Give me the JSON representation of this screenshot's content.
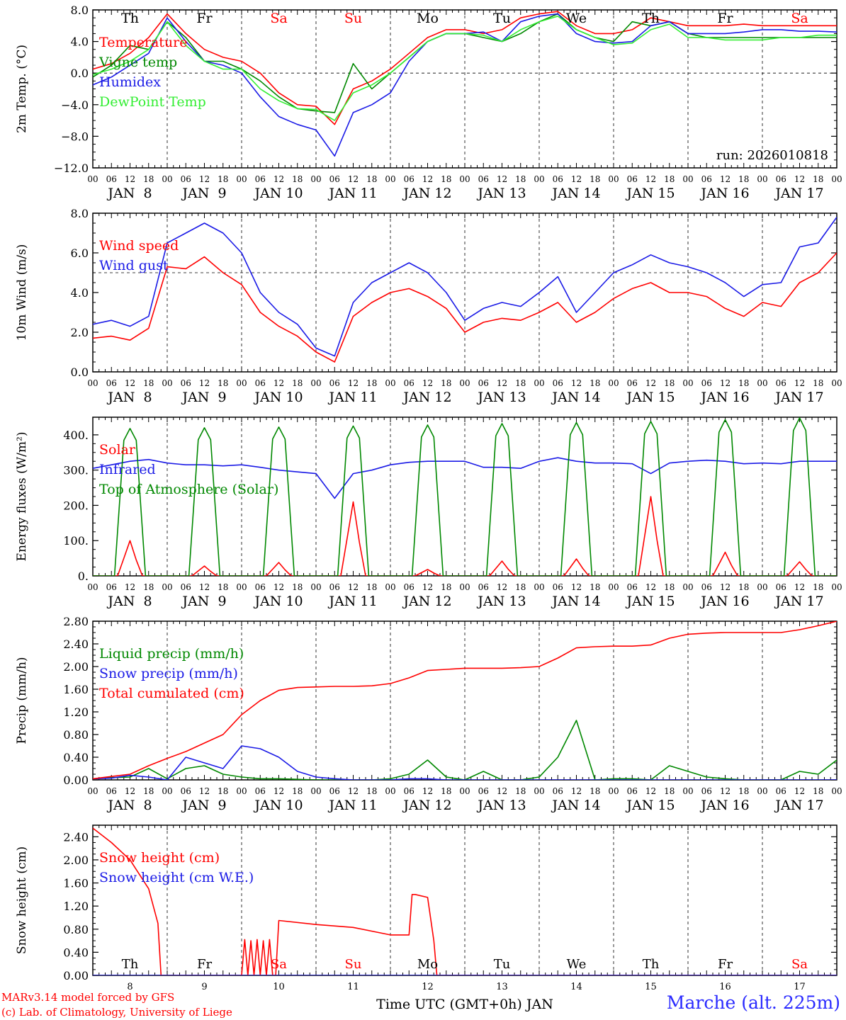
{
  "run_label": "run: 2026010818",
  "footer": {
    "model": "MARv3.14 model forced by GFS",
    "lab": "(c) Lab. of Climatology, University of Liege",
    "station": "Marche (alt. 225m)"
  },
  "colors": {
    "red": "#ff0000",
    "green": "#008800",
    "blue": "#1a1ae6",
    "lime": "#33ee33",
    "weekend": "#ff0000",
    "axis": "#000000"
  },
  "time_axis": {
    "hour_ticks": [
      "00",
      "06",
      "12",
      "18"
    ],
    "day_labels": [
      "JAN  8",
      "JAN  9",
      "JAN 10",
      "JAN 11",
      "JAN 12",
      "JAN 13",
      "JAN 14",
      "JAN 15",
      "JAN 16",
      "JAN 17"
    ],
    "weekdays": [
      "Th",
      "Fr",
      "Sa",
      "Su",
      "Mo",
      "Tu",
      "We",
      "Th",
      "Fr",
      "Sa"
    ],
    "weekend": [
      false,
      false,
      true,
      true,
      false,
      false,
      false,
      false,
      false,
      true
    ],
    "bottom_day_numbers": [
      "8",
      "9",
      "10",
      "11",
      "12",
      "13",
      "14",
      "15",
      "16",
      "17"
    ],
    "bottom_title": "Time UTC (GMT+0h) JAN"
  },
  "chart_data": [
    {
      "type": "line",
      "id": "temp",
      "ylabel": "2m Temp. (°C)",
      "ylim": [
        -12,
        8
      ],
      "yticks": [
        -12,
        -8,
        -4,
        0,
        4,
        8
      ],
      "ytick_labels": [
        "−12.0",
        "−8.0",
        "−4.0",
        "0.0",
        "4.0",
        "8.0"
      ],
      "ref_line": 0,
      "x": [
        0,
        6,
        12,
        18,
        24,
        30,
        36,
        42,
        48,
        54,
        60,
        66,
        72,
        78,
        84,
        90,
        96,
        102,
        108,
        114,
        120,
        126,
        132,
        138,
        144,
        150,
        156,
        162,
        168,
        174,
        180,
        186,
        192,
        198,
        204,
        210,
        216,
        222,
        228,
        234,
        240
      ],
      "series": [
        {
          "name": "Temperature",
          "color": "red",
          "values": [
            0.5,
            1.2,
            2.5,
            4.5,
            7.5,
            5.0,
            3.0,
            2.0,
            1.5,
            0.0,
            -2.5,
            -4.0,
            -4.2,
            -6.5,
            -2.0,
            -1.0,
            0.5,
            2.5,
            4.5,
            5.5,
            5.5,
            5.0,
            5.5,
            7.0,
            7.5,
            7.8,
            6.0,
            5.0,
            5.0,
            5.5,
            7.0,
            6.5,
            6.0,
            6.0,
            6.0,
            6.2,
            6.0,
            6.0,
            6.0,
            6.0,
            6.0
          ]
        },
        {
          "name": "Vigne temp",
          "color": "green",
          "values": [
            -0.5,
            1.0,
            3.5,
            3.0,
            6.5,
            4.5,
            1.5,
            1.5,
            0.5,
            -1.0,
            -3.0,
            -4.5,
            -4.8,
            -5.0,
            1.2,
            -2.0,
            0.0,
            2.0,
            4.0,
            5.0,
            5.0,
            4.5,
            4.0,
            5.0,
            6.5,
            7.5,
            5.5,
            4.5,
            4.0,
            6.5,
            6.0,
            6.5,
            5.0,
            4.5,
            4.5,
            4.5,
            4.5,
            4.5,
            4.5,
            4.5,
            4.5
          ]
        },
        {
          "name": "Humidex",
          "color": "blue",
          "values": [
            -1.5,
            -0.5,
            1.0,
            2.5,
            7.0,
            4.0,
            1.5,
            1.0,
            0.0,
            -3.0,
            -5.5,
            -6.5,
            -7.2,
            -10.5,
            -5.0,
            -4.0,
            -2.5,
            1.5,
            4.0,
            5.0,
            5.0,
            5.2,
            4.0,
            6.5,
            7.2,
            7.5,
            5.0,
            4.0,
            3.8,
            4.0,
            6.0,
            6.5,
            5.0,
            5.0,
            5.0,
            5.2,
            5.5,
            5.5,
            5.3,
            5.3,
            5.2
          ]
        },
        {
          "name": "DewPoint Temp",
          "color": "lime",
          "values": [
            -0.2,
            0.5,
            1.5,
            3.0,
            6.5,
            3.5,
            1.5,
            0.5,
            0.5,
            -2.0,
            -3.5,
            -4.5,
            -4.6,
            -6.0,
            -2.5,
            -1.5,
            0.0,
            2.0,
            4.0,
            5.0,
            5.0,
            4.8,
            4.0,
            5.5,
            6.5,
            7.2,
            5.5,
            4.5,
            3.6,
            3.8,
            5.5,
            6.2,
            4.5,
            4.5,
            4.2,
            4.2,
            4.2,
            4.5,
            4.5,
            4.8,
            4.8
          ]
        }
      ],
      "legend_position": "top-left"
    },
    {
      "type": "line",
      "id": "wind",
      "ylabel": "10m Wind (m/s)",
      "ylim": [
        0,
        8
      ],
      "yticks": [
        0,
        2,
        4,
        6,
        8
      ],
      "ytick_labels": [
        "0.0",
        "2.0",
        "4.0",
        "6.0",
        "8.0"
      ],
      "ref_line": 5,
      "x": [
        0,
        6,
        12,
        18,
        24,
        30,
        36,
        42,
        48,
        54,
        60,
        66,
        72,
        78,
        84,
        90,
        96,
        102,
        108,
        114,
        120,
        126,
        132,
        138,
        144,
        150,
        156,
        162,
        168,
        174,
        180,
        186,
        192,
        198,
        204,
        210,
        216,
        222,
        228,
        234,
        240
      ],
      "series": [
        {
          "name": "Wind speed",
          "color": "red",
          "values": [
            1.7,
            1.8,
            1.6,
            2.2,
            5.3,
            5.2,
            5.8,
            5.0,
            4.4,
            3.0,
            2.3,
            1.8,
            1.0,
            0.5,
            2.8,
            3.5,
            4.0,
            4.2,
            3.8,
            3.2,
            2.0,
            2.5,
            2.7,
            2.6,
            3.0,
            3.5,
            2.5,
            3.0,
            3.7,
            4.2,
            4.5,
            4.0,
            4.0,
            3.8,
            3.2,
            2.8,
            3.5,
            3.3,
            4.5,
            5.0,
            6.0
          ]
        },
        {
          "name": "Wind gust",
          "color": "blue",
          "values": [
            2.4,
            2.6,
            2.3,
            2.8,
            6.5,
            7.0,
            7.5,
            7.0,
            6.0,
            4.0,
            3.0,
            2.4,
            1.2,
            0.8,
            3.5,
            4.5,
            5.0,
            5.5,
            5.0,
            4.0,
            2.6,
            3.2,
            3.5,
            3.3,
            4.0,
            4.8,
            3.0,
            4.0,
            5.0,
            5.4,
            5.9,
            5.5,
            5.3,
            5.0,
            4.5,
            3.8,
            4.4,
            4.5,
            6.3,
            6.5,
            7.8
          ]
        }
      ],
      "legend_position": "top-left"
    },
    {
      "type": "line",
      "id": "energy",
      "ylabel": "Energy fluxes (W/m²)",
      "ylim": [
        0,
        450
      ],
      "yticks": [
        0,
        100,
        200,
        300,
        400
      ],
      "ytick_labels": [
        "0.",
        "100.",
        "200.",
        "300.",
        "400."
      ],
      "series": [
        {
          "name": "Solar",
          "color": "red",
          "peaks": [
            100,
            28,
            38,
            210,
            18,
            42,
            48,
            225,
            67,
            40
          ]
        },
        {
          "name": "Infrared",
          "color": "blue",
          "x": [
            0,
            6,
            12,
            18,
            24,
            30,
            36,
            42,
            48,
            54,
            60,
            66,
            72,
            78,
            84,
            90,
            96,
            102,
            108,
            114,
            120,
            126,
            132,
            138,
            144,
            150,
            156,
            162,
            168,
            174,
            180,
            186,
            192,
            198,
            204,
            210,
            216,
            222,
            228,
            234,
            240
          ],
          "values": [
            305,
            315,
            325,
            330,
            320,
            315,
            315,
            312,
            315,
            308,
            300,
            295,
            290,
            220,
            290,
            300,
            315,
            322,
            325,
            325,
            325,
            308,
            308,
            305,
            325,
            335,
            325,
            320,
            320,
            318,
            290,
            320,
            325,
            328,
            325,
            318,
            320,
            318,
            325,
            325,
            325
          ]
        },
        {
          "name": "Top of Atmosphere (Solar)",
          "color": "green",
          "peaks": [
            418,
            420,
            422,
            425,
            428,
            432,
            435,
            438,
            443,
            448
          ]
        }
      ],
      "legend_position": "top-left"
    },
    {
      "type": "line",
      "id": "precip",
      "ylabel": "Precip (mm/h)",
      "ylim": [
        0,
        2.8
      ],
      "yticks": [
        0,
        0.4,
        0.8,
        1.2,
        1.6,
        2.0,
        2.4,
        2.8
      ],
      "ytick_labels": [
        "0.00",
        "0.40",
        "0.80",
        "1.20",
        "1.60",
        "2.00",
        "2.40",
        "2.80"
      ],
      "x": [
        0,
        6,
        12,
        18,
        24,
        30,
        36,
        42,
        48,
        54,
        60,
        66,
        72,
        78,
        84,
        90,
        96,
        102,
        108,
        114,
        120,
        126,
        132,
        138,
        144,
        150,
        156,
        162,
        168,
        174,
        180,
        186,
        192,
        198,
        204,
        210,
        216,
        222,
        228,
        234,
        240
      ],
      "series": [
        {
          "name": "Liquid precip (mm/h)",
          "color": "green",
          "values": [
            0.02,
            0.04,
            0.05,
            0.2,
            0.02,
            0.2,
            0.25,
            0.1,
            0.05,
            0.02,
            0.02,
            0.01,
            0.0,
            0.0,
            0.0,
            0.0,
            0.02,
            0.1,
            0.35,
            0.05,
            0.0,
            0.15,
            0.0,
            0.0,
            0.05,
            0.4,
            1.05,
            0.0,
            0.02,
            0.02,
            0.0,
            0.25,
            0.15,
            0.05,
            0.02,
            0.0,
            0.0,
            0.0,
            0.15,
            0.1,
            0.35
          ]
        },
        {
          "name": "Snow precip (mm/h)",
          "color": "blue",
          "values": [
            0.02,
            0.03,
            0.08,
            0.05,
            0.0,
            0.4,
            0.3,
            0.2,
            0.6,
            0.55,
            0.4,
            0.15,
            0.05,
            0.02,
            0.0,
            0.0,
            0.0,
            0.02,
            0.02,
            0.0,
            0.0,
            0.0,
            0.0,
            0.0,
            0.0,
            0.0,
            0.0,
            0.0,
            0.0,
            0.0,
            0.0,
            0.0,
            0.0,
            0.0,
            0.0,
            0.0,
            0.0,
            0.0,
            0.0,
            0.0,
            0.0
          ]
        },
        {
          "name": "Total cumulated (cm)",
          "color": "red",
          "values": [
            0.02,
            0.06,
            0.1,
            0.25,
            0.38,
            0.5,
            0.65,
            0.8,
            1.15,
            1.4,
            1.58,
            1.63,
            1.64,
            1.65,
            1.65,
            1.66,
            1.7,
            1.8,
            1.93,
            1.95,
            1.97,
            1.97,
            1.97,
            1.98,
            2.0,
            2.15,
            2.33,
            2.35,
            2.36,
            2.36,
            2.38,
            2.5,
            2.57,
            2.59,
            2.6,
            2.6,
            2.6,
            2.6,
            2.65,
            2.72,
            2.8
          ]
        }
      ],
      "legend_position": "top-left"
    },
    {
      "type": "line",
      "id": "snow",
      "ylabel": "Snow height (cm)",
      "ylim": [
        0,
        2.6
      ],
      "yticks": [
        0,
        0.4,
        0.8,
        1.2,
        1.6,
        2.0,
        2.4
      ],
      "ytick_labels": [
        "0.00",
        "0.40",
        "0.80",
        "1.20",
        "1.60",
        "2.00",
        "2.40"
      ],
      "series": [
        {
          "name": "Snow height (cm)",
          "color": "red",
          "x": [
            0,
            6,
            12,
            18,
            21,
            22,
            48,
            49,
            50,
            51,
            52,
            53,
            54,
            55,
            56,
            57,
            58,
            59,
            60,
            72,
            84,
            96,
            102,
            103,
            104,
            108,
            110,
            111,
            112,
            240
          ],
          "values": [
            2.55,
            2.3,
            2.0,
            1.5,
            0.9,
            0.0,
            0.0,
            0.62,
            0.0,
            0.6,
            0.0,
            0.62,
            0.0,
            0.6,
            0.0,
            0.62,
            0.0,
            0.0,
            0.95,
            0.88,
            0.83,
            0.7,
            0.7,
            1.4,
            1.4,
            1.35,
            0.6,
            0.0,
            0.0,
            0.0
          ]
        },
        {
          "name": "Snow height (cm W.E.)",
          "color": "blue",
          "x": [
            0,
            240
          ],
          "values": [
            0,
            0
          ]
        }
      ],
      "legend_position": "top-left"
    }
  ]
}
